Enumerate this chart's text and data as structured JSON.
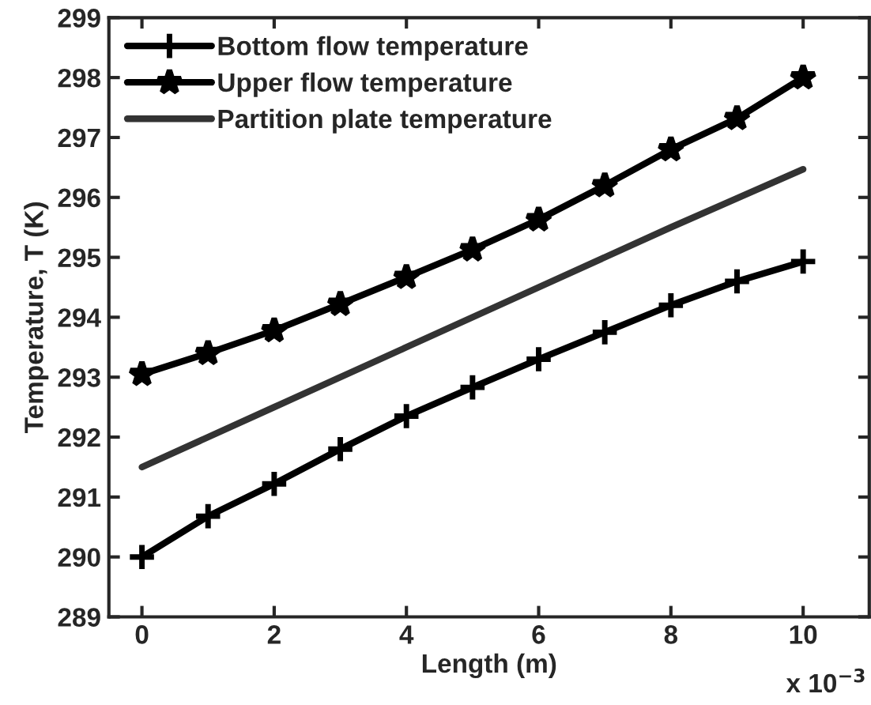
{
  "chart_data": {
    "type": "line",
    "xlabel": "Length (m)",
    "ylabel": "Temperature, T (K)",
    "xlim": [
      -0.5,
      11
    ],
    "xticks": [
      0,
      2,
      4,
      6,
      8,
      10
    ],
    "ylim": [
      289,
      299
    ],
    "yticks": [
      289,
      290,
      291,
      292,
      293,
      294,
      295,
      296,
      297,
      298,
      299
    ],
    "grid": false,
    "legend": "top left",
    "annotations": [
      "x 10$^{−3}$"
    ],
    "series": [
      {
        "name": "Bottom flow temperature",
        "color": "#000000",
        "marker": "cross",
        "x": [
          0,
          1,
          2,
          3,
          4,
          5,
          6,
          7,
          8,
          9,
          10
        ],
        "values": [
          290.0,
          290.68,
          291.22,
          291.8,
          292.35,
          292.83,
          293.3,
          293.75,
          294.2,
          294.6,
          294.93
        ]
      },
      {
        "name": "Upper flow temperature",
        "color": "#000000",
        "marker": "star",
        "x": [
          0,
          1,
          2,
          3,
          4,
          5,
          6,
          7,
          8,
          9,
          10
        ],
        "values": [
          293.05,
          293.4,
          293.78,
          294.22,
          294.67,
          295.13,
          295.63,
          296.2,
          296.8,
          297.32,
          298.0
        ]
      },
      {
        "name": "Partition plate temperature",
        "color": "#333333",
        "marker": "none",
        "x": [
          0,
          2,
          4,
          6,
          8,
          10
        ],
        "values": [
          291.5,
          292.5,
          293.5,
          294.5,
          295.5,
          296.47
        ]
      }
    ]
  }
}
